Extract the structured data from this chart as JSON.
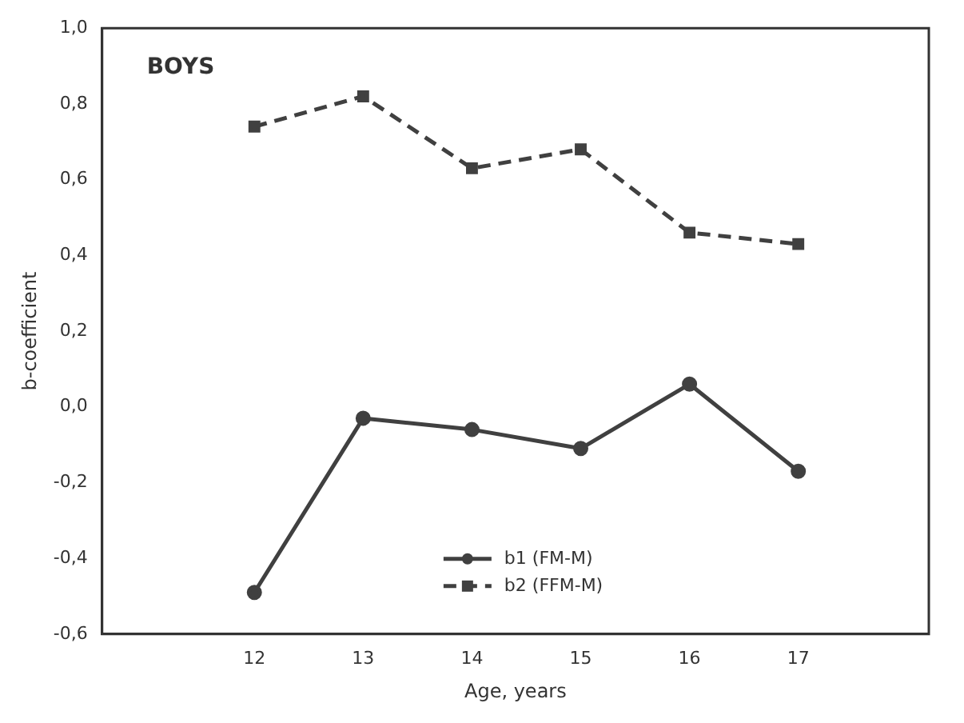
{
  "chart_data": {
    "type": "line",
    "title": "BOYS",
    "xlabel": "Age, years",
    "ylabel": "b-coefficient",
    "x": [
      12,
      13,
      14,
      15,
      16,
      17
    ],
    "series": [
      {
        "name": "b1 (FM-M)",
        "color": "#404040",
        "values": [
          -0.49,
          -0.03,
          -0.06,
          -0.11,
          0.06,
          -0.17
        ],
        "marker": "circle",
        "line_style": "solid"
      },
      {
        "name": "b2 (FFM-M)",
        "color": "#404040",
        "values": [
          0.74,
          0.82,
          0.63,
          0.68,
          0.46,
          0.43
        ],
        "marker": "square",
        "line_style": "dashed"
      }
    ],
    "xlim": [
      10.6,
      18.2
    ],
    "xticks": [
      12,
      13,
      14,
      15,
      16,
      17
    ],
    "ylim": [
      -0.6,
      1.0
    ],
    "yticks": [
      {
        "value": -0.6,
        "label": "-0,6"
      },
      {
        "value": -0.4,
        "label": "-0,4"
      },
      {
        "value": -0.2,
        "label": "-0,2"
      },
      {
        "value": 0,
        "label": "0,0"
      },
      {
        "value": 0.2,
        "label": "0,2"
      },
      {
        "value": 0.4,
        "label": "0,4"
      },
      {
        "value": 0.6,
        "label": "0,6"
      },
      {
        "value": 0.8,
        "label": "0,8"
      },
      {
        "value": 1.0,
        "label": "1,0"
      }
    ],
    "legend": "bottom"
  }
}
